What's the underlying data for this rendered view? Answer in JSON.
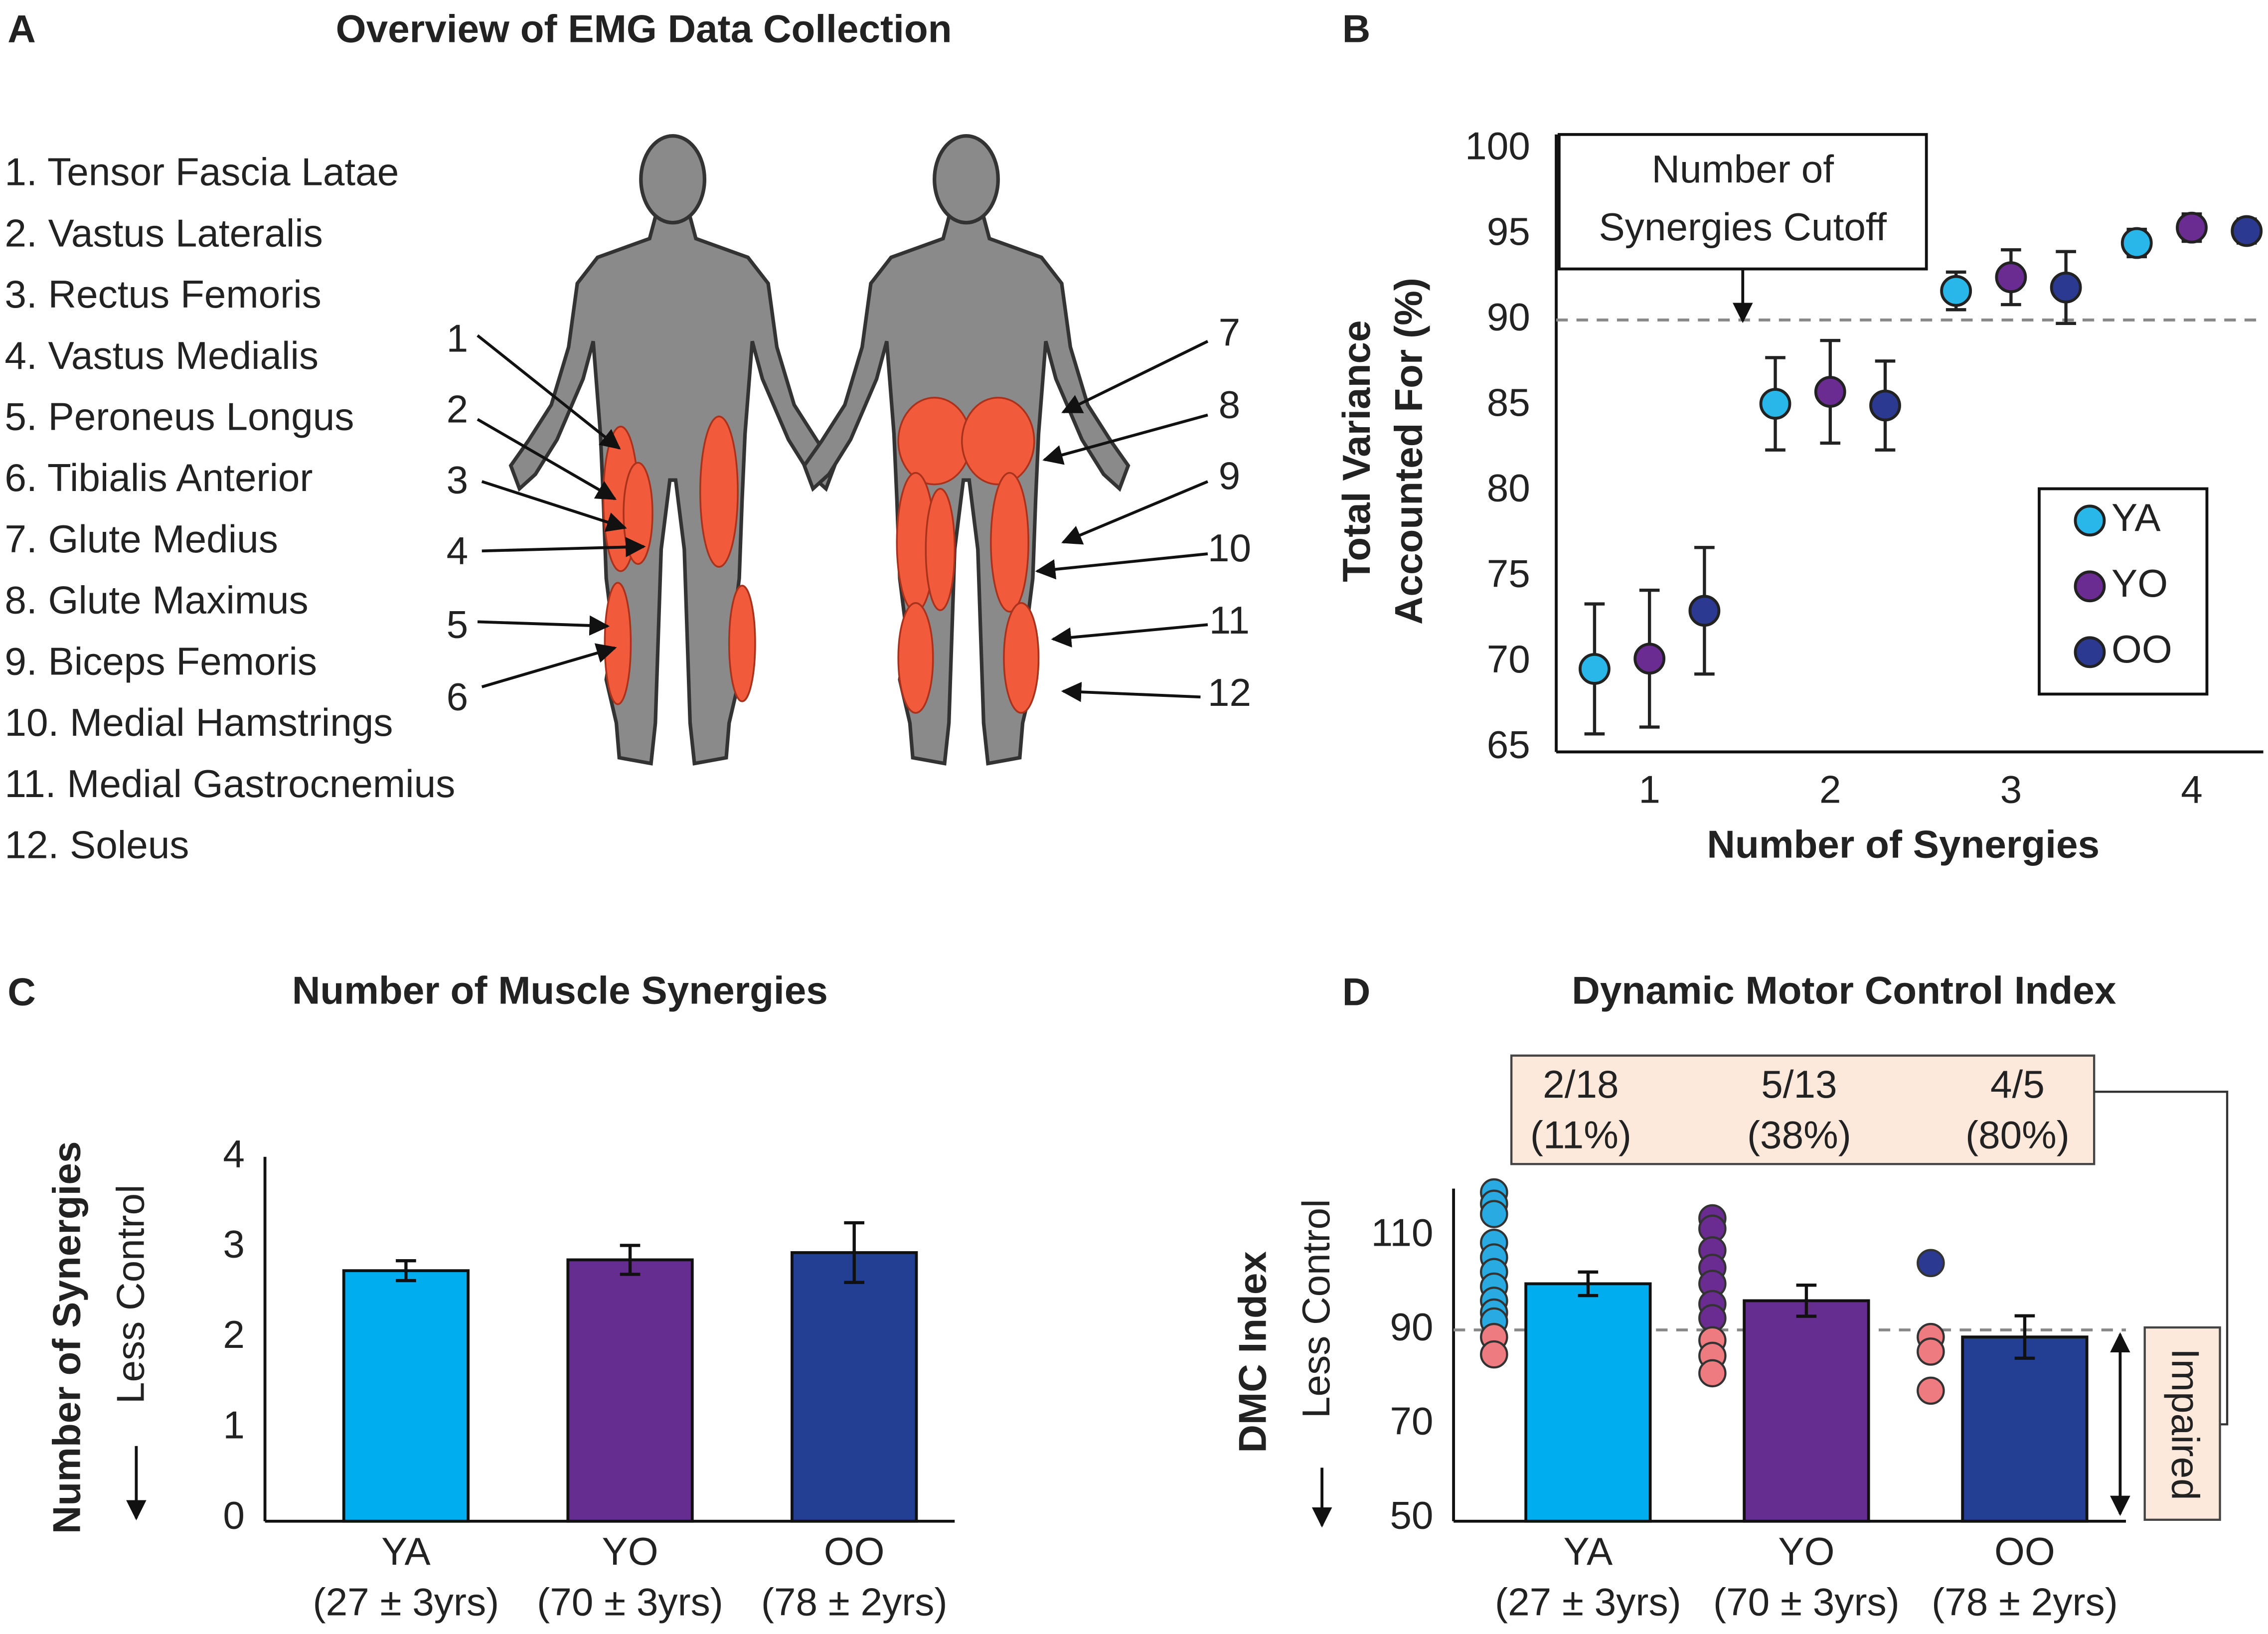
{
  "panel_labels": [
    "A",
    "B",
    "C",
    "D"
  ],
  "diagram": {
    "title": "Overview of EMG Data Collection",
    "muscles": [
      "1. Tensor Fascia Latae",
      "2. Vastus Lateralis",
      "3. Rectus Femoris",
      "4. Vastus Medialis",
      "5. Peroneus Longus",
      "6. Tibialis Anterior",
      "7. Glute Medius",
      "8. Glute Maximus",
      "9. Biceps Femoris",
      "10. Medial Hamstrings",
      "11. Medial Gastrocnemius",
      "12. Soleus"
    ],
    "front_labels": [
      "1",
      "2",
      "3",
      "4",
      "5",
      "6"
    ],
    "back_labels": [
      "7",
      "8",
      "9",
      "10",
      "11",
      "12"
    ]
  },
  "chart_data": [
    {
      "type": "scatter",
      "xlabel": "Number of Synergies",
      "ylabel": [
        "Total Variance",
        "Accounted For (%)"
      ],
      "categories": [
        1,
        2,
        3,
        4
      ],
      "ylim": [
        65,
        100
      ],
      "yticks": [
        65,
        70,
        75,
        80,
        85,
        90,
        95,
        100
      ],
      "threshold": 90,
      "annotation": [
        "Number of",
        "Synergies Cutoff"
      ],
      "legend": "lower right",
      "series": [
        {
          "name": "YA",
          "color": "#29b6e8",
          "values": [
            69.6,
            85.1,
            91.7,
            94.5
          ],
          "errors": [
            3.8,
            2.7,
            1.1,
            0.8
          ]
        },
        {
          "name": "YO",
          "color": "#6a2c91",
          "values": [
            70.2,
            85.8,
            92.5,
            95.4
          ],
          "errors": [
            4.0,
            3.0,
            1.6,
            0.8
          ]
        },
        {
          "name": "OO",
          "color": "#2b3990",
          "values": [
            73.0,
            85.0,
            91.9,
            95.2
          ],
          "errors": [
            3.7,
            2.6,
            2.1,
            0.7
          ]
        }
      ]
    },
    {
      "type": "bar",
      "title": "Number of Muscle Synergies",
      "ylabel": [
        "Number of Synergies",
        "Less Control"
      ],
      "categories": [
        "YA",
        "YO",
        "OO"
      ],
      "category_sublabels": [
        "(27 ± 3yrs)",
        "(70 ± 3yrs)",
        "(78 ± 2yrs)"
      ],
      "values": [
        2.74,
        2.86,
        2.94
      ],
      "errors": [
        0.11,
        0.16,
        0.33
      ],
      "colors": [
        "#00aeef",
        "#662d91",
        "#233f94"
      ],
      "ylim": [
        0,
        4
      ],
      "yticks": [
        0,
        1,
        2,
        3,
        4
      ]
    },
    {
      "type": "bar",
      "title": "Dynamic Motor Control Index",
      "ylabel": [
        "DMC Index",
        "Less Control"
      ],
      "categories": [
        "YA",
        "YO",
        "OO"
      ],
      "category_sublabels": [
        "(27 ± 3yrs)",
        "(70 ± 3yrs)",
        "(78 ± 2yrs)"
      ],
      "values": [
        99.8,
        96.2,
        88.5
      ],
      "errors": [
        2.5,
        3.3,
        4.5
      ],
      "colors": [
        "#00aeef",
        "#662d91",
        "#233f94"
      ],
      "point_colors": [
        "#29abe2",
        "#6a2c91",
        "#2b3990"
      ],
      "impaired_color": "#ee7b80",
      "points": [
        [
          119.2,
          116.8,
          114.6,
          108.5,
          105.4,
          102.3,
          99.2,
          96.2,
          93.7,
          91.8,
          88.5,
          84.8
        ],
        [
          113.7,
          111.5,
          106.9,
          103.2,
          99.8,
          95.5,
          92.5,
          87.8,
          84.5,
          80.8
        ],
        [
          104.2,
          88.5,
          85.4,
          77.1
        ]
      ],
      "threshold": 90,
      "impaired_label": "Impaired",
      "group_annotations": [
        [
          "2/18",
          "(11%)"
        ],
        [
          "5/13",
          "(38%)"
        ],
        [
          "4/5",
          "(80%)"
        ]
      ],
      "ylim": [
        50,
        120
      ],
      "yticks": [
        50,
        70,
        90,
        110
      ]
    }
  ]
}
